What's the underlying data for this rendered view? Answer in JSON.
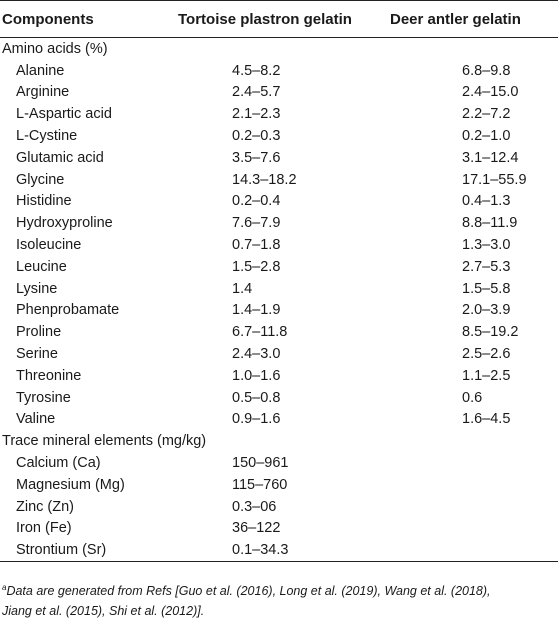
{
  "headers": {
    "components": "Components",
    "tortoise": "Tortoise plastron gelatin",
    "deer": "Deer antler gelatin"
  },
  "sections": {
    "amino": "Amino acids (%)",
    "trace": "Trace mineral elements (mg/kg)"
  },
  "amino_rows": [
    {
      "name": "Alanine",
      "tortoise": "4.5–8.2",
      "deer": "6.8–9.8"
    },
    {
      "name": "Arginine",
      "tortoise": "2.4–5.7",
      "deer": "2.4–15.0"
    },
    {
      "name": "L-Aspartic acid",
      "tortoise": "2.1–2.3",
      "deer": "2.2–7.2"
    },
    {
      "name": "L-Cystine",
      "tortoise": "0.2–0.3",
      "deer": "0.2–1.0"
    },
    {
      "name": "Glutamic acid",
      "tortoise": "3.5–7.6",
      "deer": "3.1–12.4"
    },
    {
      "name": "Glycine",
      "tortoise": "14.3–18.2",
      "deer": "17.1–55.9"
    },
    {
      "name": "Histidine",
      "tortoise": "0.2–0.4",
      "deer": "0.4–1.3"
    },
    {
      "name": "Hydroxyproline",
      "tortoise": "7.6–7.9",
      "deer": "8.8–11.9"
    },
    {
      "name": "Isoleucine",
      "tortoise": "0.7–1.8",
      "deer": "1.3–3.0"
    },
    {
      "name": "Leucine",
      "tortoise": "1.5–2.8",
      "deer": "2.7–5.3"
    },
    {
      "name": "Lysine",
      "tortoise": "1.4",
      "deer": "1.5–5.8"
    },
    {
      "name": "Phenprobamate",
      "tortoise": "1.4–1.9",
      "deer": "2.0–3.9"
    },
    {
      "name": "Proline",
      "tortoise": "6.7–11.8",
      "deer": "8.5–19.2"
    },
    {
      "name": "Serine",
      "tortoise": "2.4–3.0",
      "deer": "2.5–2.6"
    },
    {
      "name": "Threonine",
      "tortoise": "1.0–1.6",
      "deer": "1.1–2.5"
    },
    {
      "name": "Tyrosine",
      "tortoise": "0.5–0.8",
      "deer": "0.6"
    },
    {
      "name": "Valine",
      "tortoise": "0.9–1.6",
      "deer": "1.6–4.5"
    }
  ],
  "trace_rows": [
    {
      "name": "Calcium (Ca)",
      "tortoise": "150–961",
      "deer": ""
    },
    {
      "name": "Magnesium (Mg)",
      "tortoise": "115–760",
      "deer": ""
    },
    {
      "name": "Zinc (Zn)",
      "tortoise": "0.3–06",
      "deer": ""
    },
    {
      "name": "Iron (Fe)",
      "tortoise": "36–122",
      "deer": ""
    },
    {
      "name": "Strontium (Sr)",
      "tortoise": "0.1–34.3",
      "deer": ""
    }
  ],
  "footnote": {
    "marker": "a",
    "line1": "Data are generated from Refs [Guo et al. (2016), Long et al. (2019), Wang et al. (2018),",
    "line2": "Jiang et al. (2015), Shi et al. (2012)]."
  }
}
